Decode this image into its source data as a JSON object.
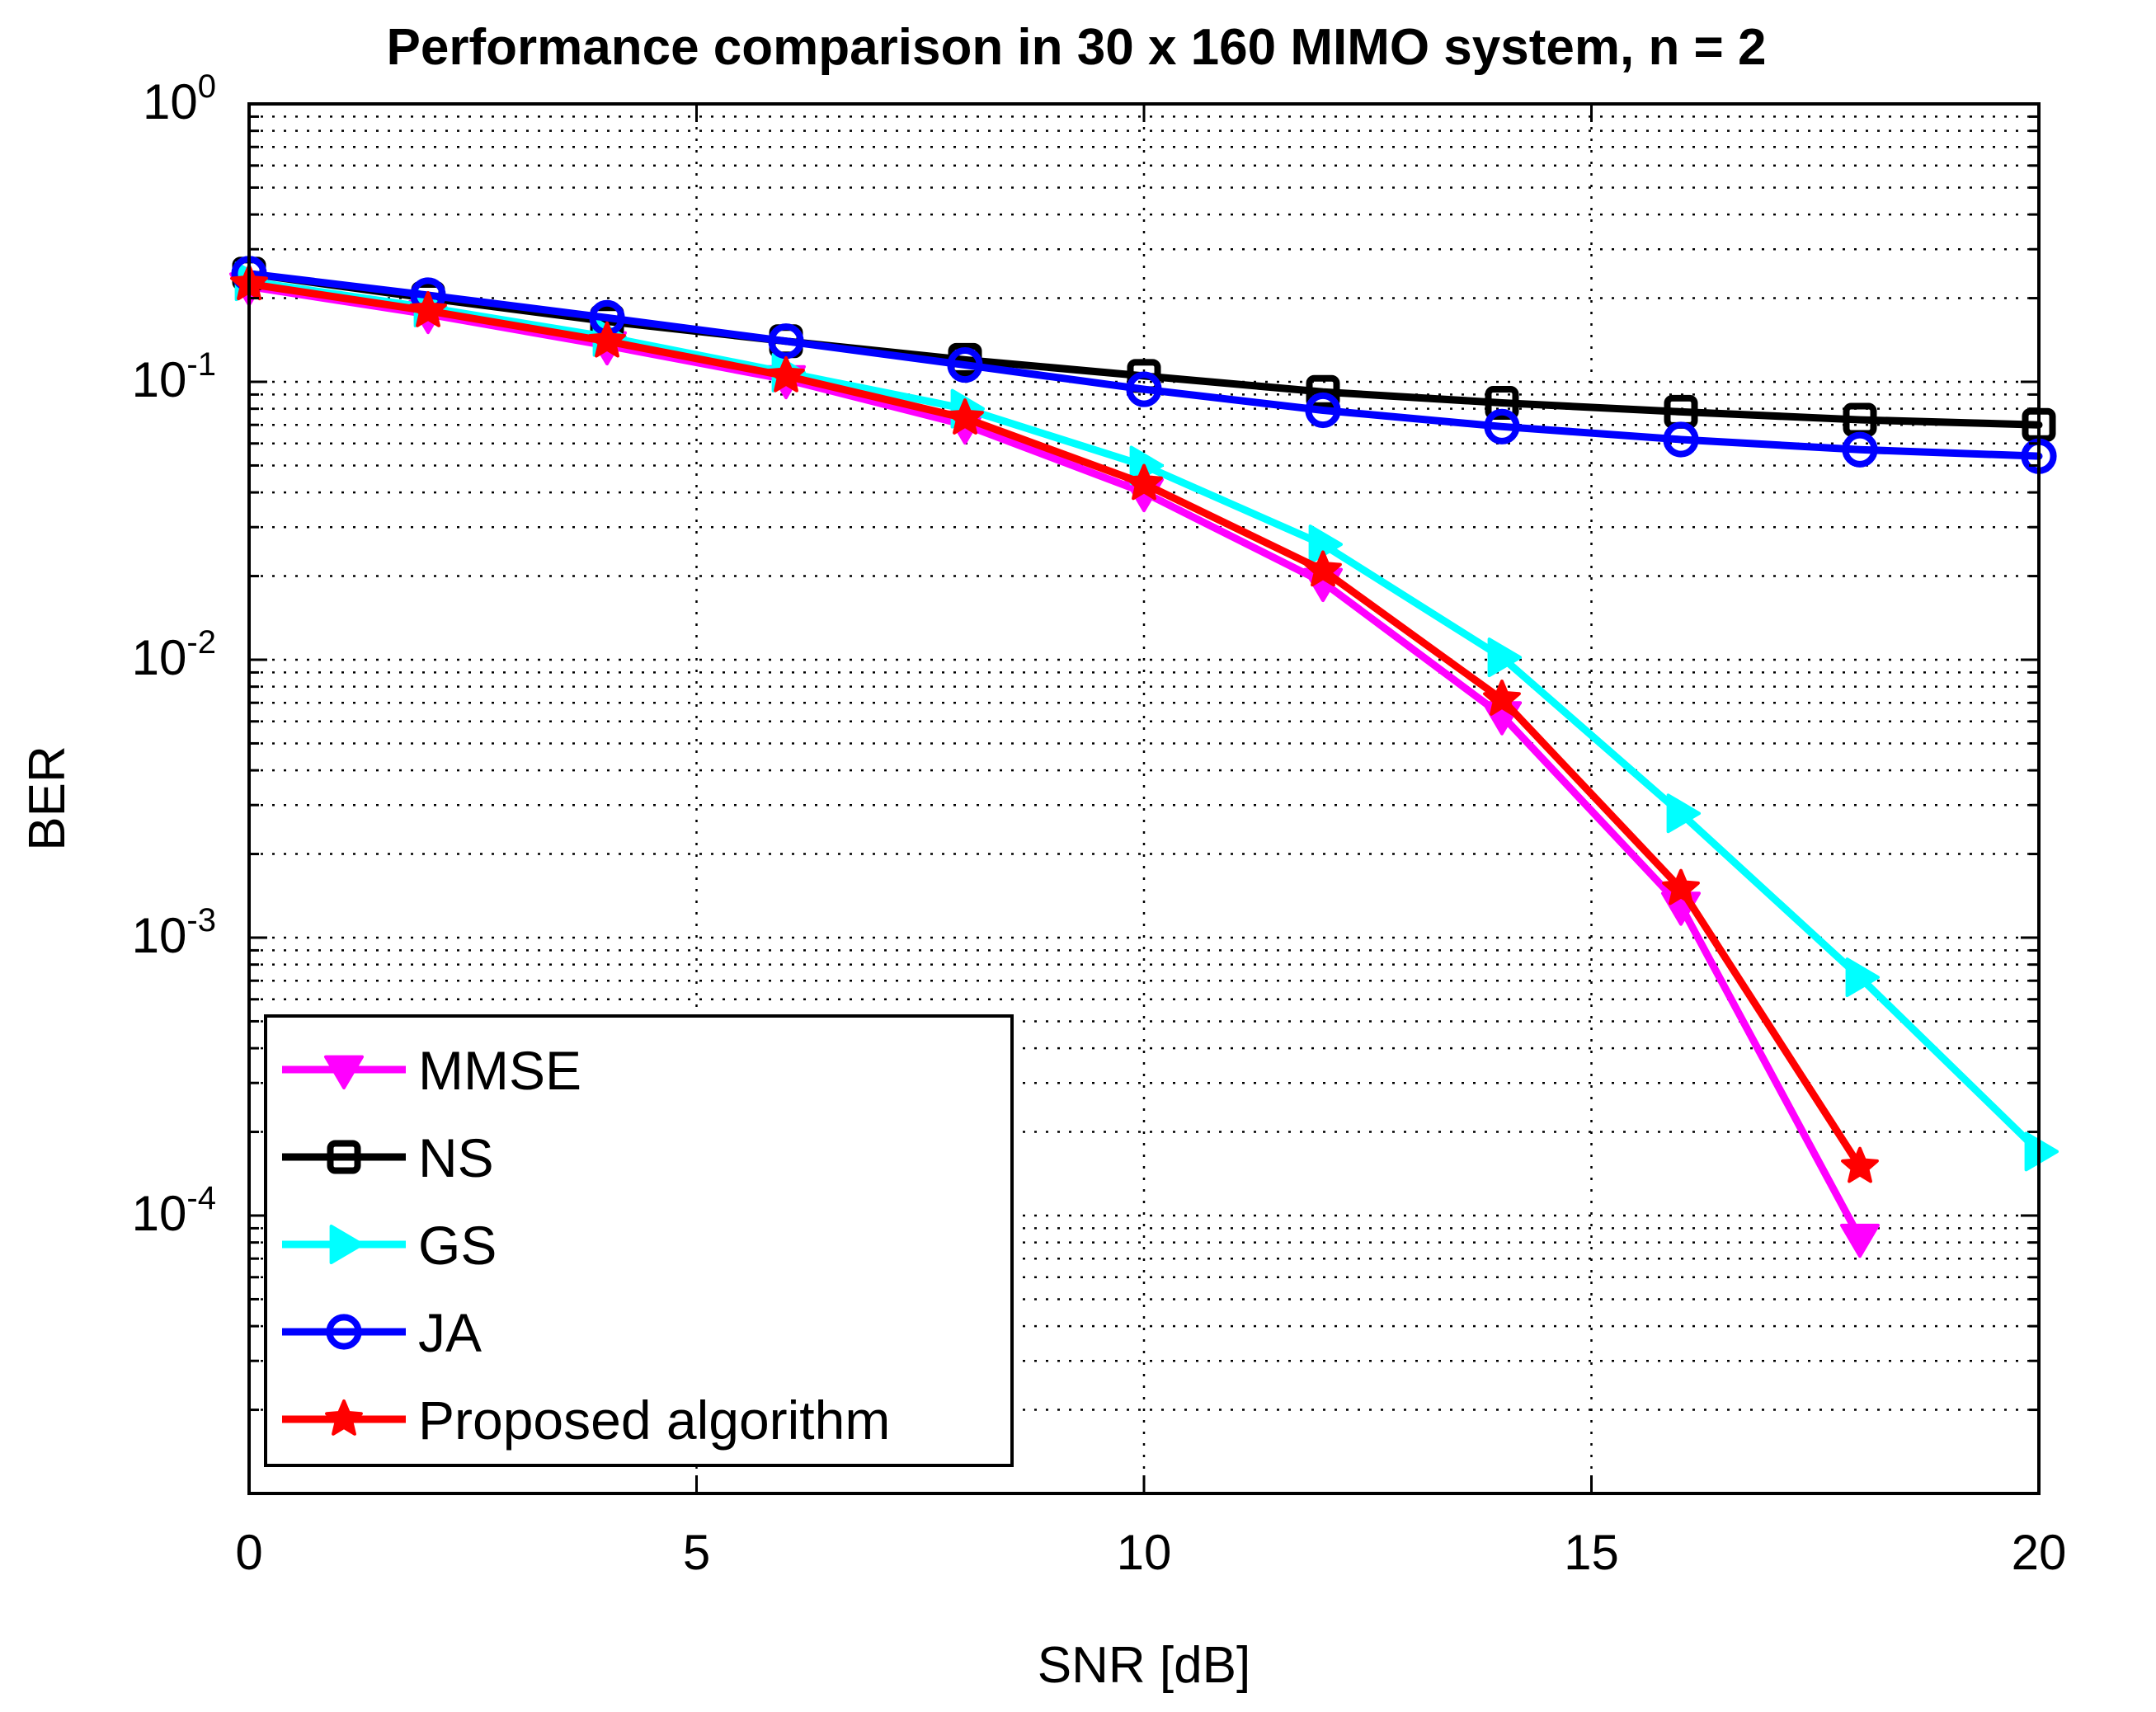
{
  "chart_data": {
    "type": "line",
    "title": "Performance comparison in 30 x 160 MIMO system, n = 2",
    "xlabel": "SNR [dB]",
    "ylabel": "BER",
    "xlim": [
      0,
      20
    ],
    "ylim": [
      1e-05,
      1
    ],
    "yscale": "log",
    "x_ticks": [
      "0",
      "5",
      "10",
      "15",
      "20"
    ],
    "y_ticks": [
      {
        "base": "10",
        "exp": "0"
      },
      {
        "base": "10",
        "exp": "-1"
      },
      {
        "base": "10",
        "exp": "-2"
      },
      {
        "base": "10",
        "exp": "-3"
      },
      {
        "base": "10",
        "exp": "-4"
      }
    ],
    "grid": true,
    "legend_position": "bottom-left",
    "series": [
      {
        "name": "MMSE",
        "color": "#ff00ff",
        "marker": "triangle-down",
        "x": [
          0,
          2,
          4,
          6,
          8,
          10,
          12,
          14,
          16,
          18
        ],
        "y": [
          0.22,
          0.175,
          0.135,
          0.102,
          0.07,
          0.04,
          0.019,
          0.0063,
          0.0013,
          8.3e-05
        ]
      },
      {
        "name": "NS",
        "color": "#000000",
        "marker": "square",
        "x": [
          0,
          2,
          4,
          6,
          8,
          10,
          12,
          14,
          16,
          18,
          20
        ],
        "y": [
          0.245,
          0.2,
          0.165,
          0.14,
          0.12,
          0.105,
          0.092,
          0.084,
          0.078,
          0.073,
          0.07
        ]
      },
      {
        "name": "GS",
        "color": "#00ffff",
        "marker": "triangle-right",
        "x": [
          0,
          2,
          4,
          6,
          8,
          10,
          12,
          14,
          16,
          18,
          20
        ],
        "y": [
          0.23,
          0.185,
          0.145,
          0.108,
          0.08,
          0.05,
          0.026,
          0.0102,
          0.0028,
          0.00072,
          0.00017
        ]
      },
      {
        "name": "JA",
        "color": "#0000ff",
        "marker": "circle",
        "x": [
          0,
          2,
          4,
          6,
          8,
          10,
          12,
          14,
          16,
          18,
          20
        ],
        "y": [
          0.245,
          0.205,
          0.17,
          0.14,
          0.115,
          0.094,
          0.079,
          0.069,
          0.062,
          0.057,
          0.054
        ]
      },
      {
        "name": "Proposed algorithm",
        "color": "#ff0000",
        "marker": "star",
        "x": [
          0,
          2,
          4,
          6,
          8,
          10,
          12,
          14,
          16,
          18
        ],
        "y": [
          0.225,
          0.18,
          0.14,
          0.105,
          0.074,
          0.043,
          0.021,
          0.0072,
          0.0015,
          0.00015
        ]
      }
    ]
  }
}
